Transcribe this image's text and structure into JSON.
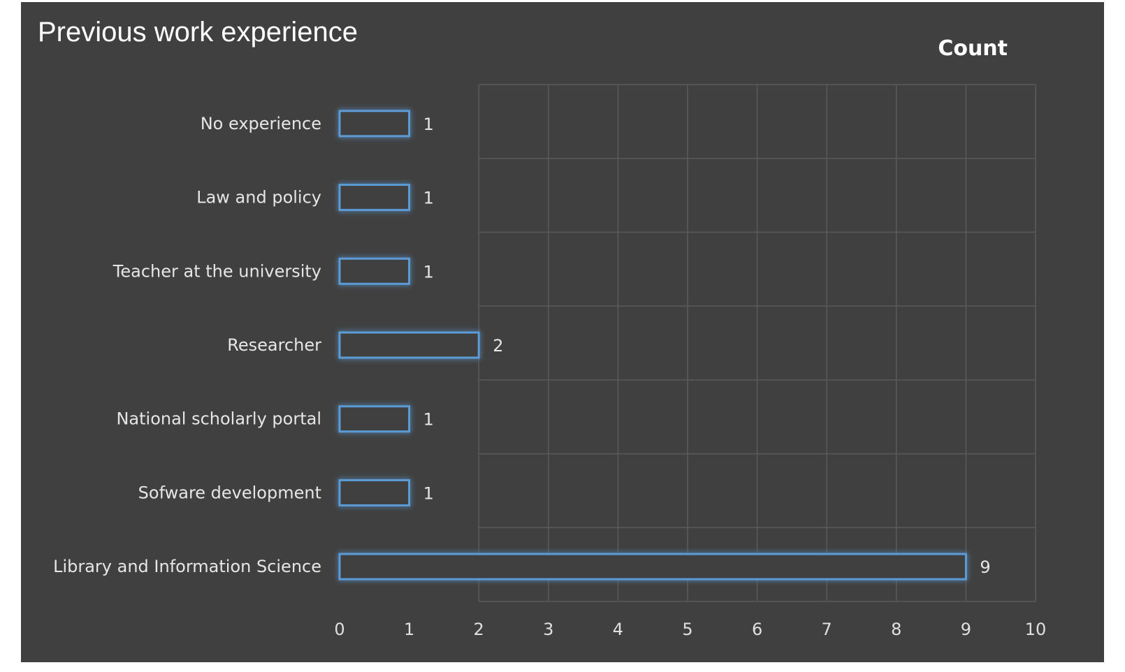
{
  "chart_data": {
    "type": "bar",
    "orientation": "horizontal",
    "title": "Previous work experience",
    "xlabel": "",
    "ylabel": "",
    "categories": [
      "No experience",
      "Law and policy",
      "Teacher at the university",
      "Researcher",
      "National scholarly portal",
      "Sofware development",
      "Library and Information Science"
    ],
    "series": [
      {
        "name": "Count",
        "values": [
          1,
          1,
          1,
          2,
          1,
          1,
          9
        ]
      }
    ],
    "xlim": [
      0,
      10
    ],
    "ticks": [
      0,
      1,
      2,
      3,
      4,
      5,
      6,
      7,
      8,
      9,
      10
    ],
    "grid": true,
    "legend": "top-right",
    "colors": {
      "background": "#404040",
      "bar_outline": "#5b9bd5",
      "bar_fill": "#404040",
      "grid": "#5a5a5a",
      "text": "#e6e6e6"
    }
  }
}
